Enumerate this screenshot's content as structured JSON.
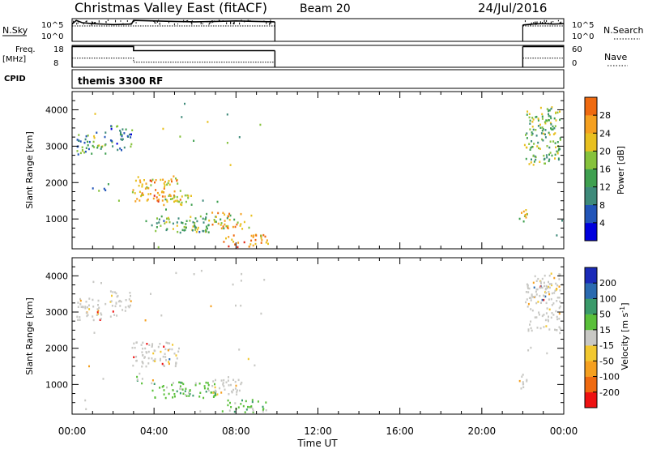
{
  "header": {
    "title": "Christmas Valley East (fitACF)",
    "beam": "Beam 20",
    "date": "24/Jul/2016"
  },
  "panels": {
    "nsky": {
      "left_label": "N.Sky",
      "right_label": "N.Search",
      "left_ticks": [
        "10^5",
        "10^0"
      ],
      "right_ticks": [
        "10^5",
        "10^0"
      ]
    },
    "freq": {
      "left_label_line1": "Freq.",
      "left_label_line2": "[MHz]",
      "right_label": "Nave",
      "left_ticks": [
        "18",
        "8"
      ],
      "right_ticks": [
        "60",
        "0"
      ]
    },
    "cpid": {
      "label": "CPID",
      "text": "themis 3300 RF"
    }
  },
  "x_axis": {
    "label": "Time UT",
    "ticks": [
      "00:00",
      "04:00",
      "08:00",
      "12:00",
      "16:00",
      "20:00",
      "00:00"
    ]
  },
  "y_axis": {
    "label": "Slant Range [km]",
    "ticks": [
      "4000",
      "3000",
      "2000",
      "1000"
    ]
  },
  "power_colorbar": {
    "label": "Power [dB]",
    "ticks": [
      "28",
      "24",
      "20",
      "16",
      "12",
      "8",
      "4"
    ]
  },
  "velocity_colorbar": {
    "label": "Velocity [m s",
    "label_sup": "-1",
    "label_end": "]",
    "ticks": [
      "200",
      "100",
      "50",
      "15",
      "-15",
      "-50",
      "-100",
      "-200"
    ]
  },
  "colors": {
    "power": [
      "#0000dd",
      "#2255b8",
      "#3e8a7a",
      "#3fa050",
      "#86c23c",
      "#e8c020",
      "#f5a020",
      "#ef6a10",
      "#e02010"
    ],
    "velocity": [
      "#ee1111",
      "#ef6a10",
      "#f5a020",
      "#f2c830",
      "#c8c8c4",
      "#5ac03a",
      "#3a9a6a",
      "#2a6ab0",
      "#1a2ab8"
    ]
  },
  "chart_data": [
    {
      "type": "line",
      "panel": "N.Sky / N.Search",
      "x_unit": "hours UT",
      "series": [
        {
          "name": "N.Sky",
          "x": [
            0,
            0.2,
            0.5,
            1,
            2,
            2.9,
            3,
            4,
            5,
            6,
            7,
            8,
            9,
            9.9,
            22,
            22.5,
            23,
            23.5,
            24
          ],
          "y_log10": [
            3.8,
            4.6,
            4.1,
            3.9,
            3.7,
            3.8,
            4.6,
            4.5,
            4.4,
            4.3,
            4.4,
            4.5,
            4.4,
            4.3,
            3.6,
            3.8,
            3.9,
            3.8,
            3.9
          ]
        },
        {
          "name": "N.Search",
          "x": [
            0,
            9.9,
            22,
            24
          ],
          "y_log10": [
            3.4,
            3.4,
            3.4,
            3.4
          ]
        }
      ]
    },
    {
      "type": "line",
      "panel": "Freq. / Nave",
      "x_unit": "hours UT",
      "series": [
        {
          "name": "Freq.",
          "unit": "MHz",
          "x": [
            0,
            3,
            3,
            9.9,
            22,
            24
          ],
          "y": [
            17.5,
            17.5,
            15.6,
            15.6,
            17.5,
            17.5
          ]
        },
        {
          "name": "Nave",
          "x": [
            0,
            3,
            3,
            9.9,
            22,
            24
          ],
          "y": [
            25,
            25,
            14,
            14,
            25,
            25
          ]
        }
      ]
    },
    {
      "type": "heatmap",
      "title": "Power [dB]",
      "xlabel": "Time UT",
      "ylabel": "Slant Range [km]",
      "x_unit": "hours UT",
      "xlim": [
        0,
        24
      ],
      "ylim": [
        180,
        4500
      ],
      "zlim": [
        0,
        32
      ],
      "regions": [
        {
          "t": [
            0.2,
            1.6
          ],
          "r": [
            2800,
            3400
          ],
          "z": 12
        },
        {
          "t": [
            1.8,
            2.9
          ],
          "r": [
            2900,
            3600
          ],
          "z": 10
        },
        {
          "t": [
            2.9,
            5.2
          ],
          "r": [
            1500,
            2200
          ],
          "z": 22
        },
        {
          "t": [
            4.3,
            5.8
          ],
          "r": [
            1400,
            1800
          ],
          "z": 20
        },
        {
          "t": [
            3.8,
            7.0
          ],
          "r": [
            650,
            1100
          ],
          "z": 14
        },
        {
          "t": [
            6.8,
            8.4
          ],
          "r": [
            750,
            1200
          ],
          "z": 20
        },
        {
          "t": [
            7.3,
            9.5
          ],
          "r": [
            250,
            600
          ],
          "z": 24
        },
        {
          "t": [
            21.8,
            22.3
          ],
          "r": [
            900,
            1300
          ],
          "z": 18
        },
        {
          "t": [
            22.1,
            23.8
          ],
          "r": [
            2500,
            4100
          ],
          "z": 14
        }
      ]
    },
    {
      "type": "heatmap",
      "title": "Velocity [m s-1]",
      "xlabel": "Time UT",
      "ylabel": "Slant Range [km]",
      "x_unit": "hours UT",
      "xlim": [
        0,
        24
      ],
      "ylim": [
        180,
        4500
      ],
      "zlim": [
        -250,
        250
      ],
      "regions": [
        {
          "t": [
            0.2,
            1.6
          ],
          "r": [
            2800,
            3400
          ],
          "v": 0
        },
        {
          "t": [
            1.8,
            2.9
          ],
          "r": [
            2900,
            3600
          ],
          "v": 0
        },
        {
          "t": [
            2.9,
            5.2
          ],
          "r": [
            1500,
            2200
          ],
          "v": 0
        },
        {
          "t": [
            3.0,
            3.5
          ],
          "r": [
            1050,
            1250
          ],
          "v": 30
        },
        {
          "t": [
            3.8,
            7.0
          ],
          "r": [
            650,
            1100
          ],
          "v": 30
        },
        {
          "t": [
            6.8,
            8.4
          ],
          "r": [
            750,
            1200
          ],
          "v": 0
        },
        {
          "t": [
            7.3,
            9.5
          ],
          "r": [
            250,
            600
          ],
          "v": 25
        },
        {
          "t": [
            21.8,
            22.3
          ],
          "r": [
            900,
            1300
          ],
          "v": 0
        },
        {
          "t": [
            22.1,
            23.8
          ],
          "r": [
            2500,
            4100
          ],
          "v": 0
        }
      ]
    }
  ]
}
